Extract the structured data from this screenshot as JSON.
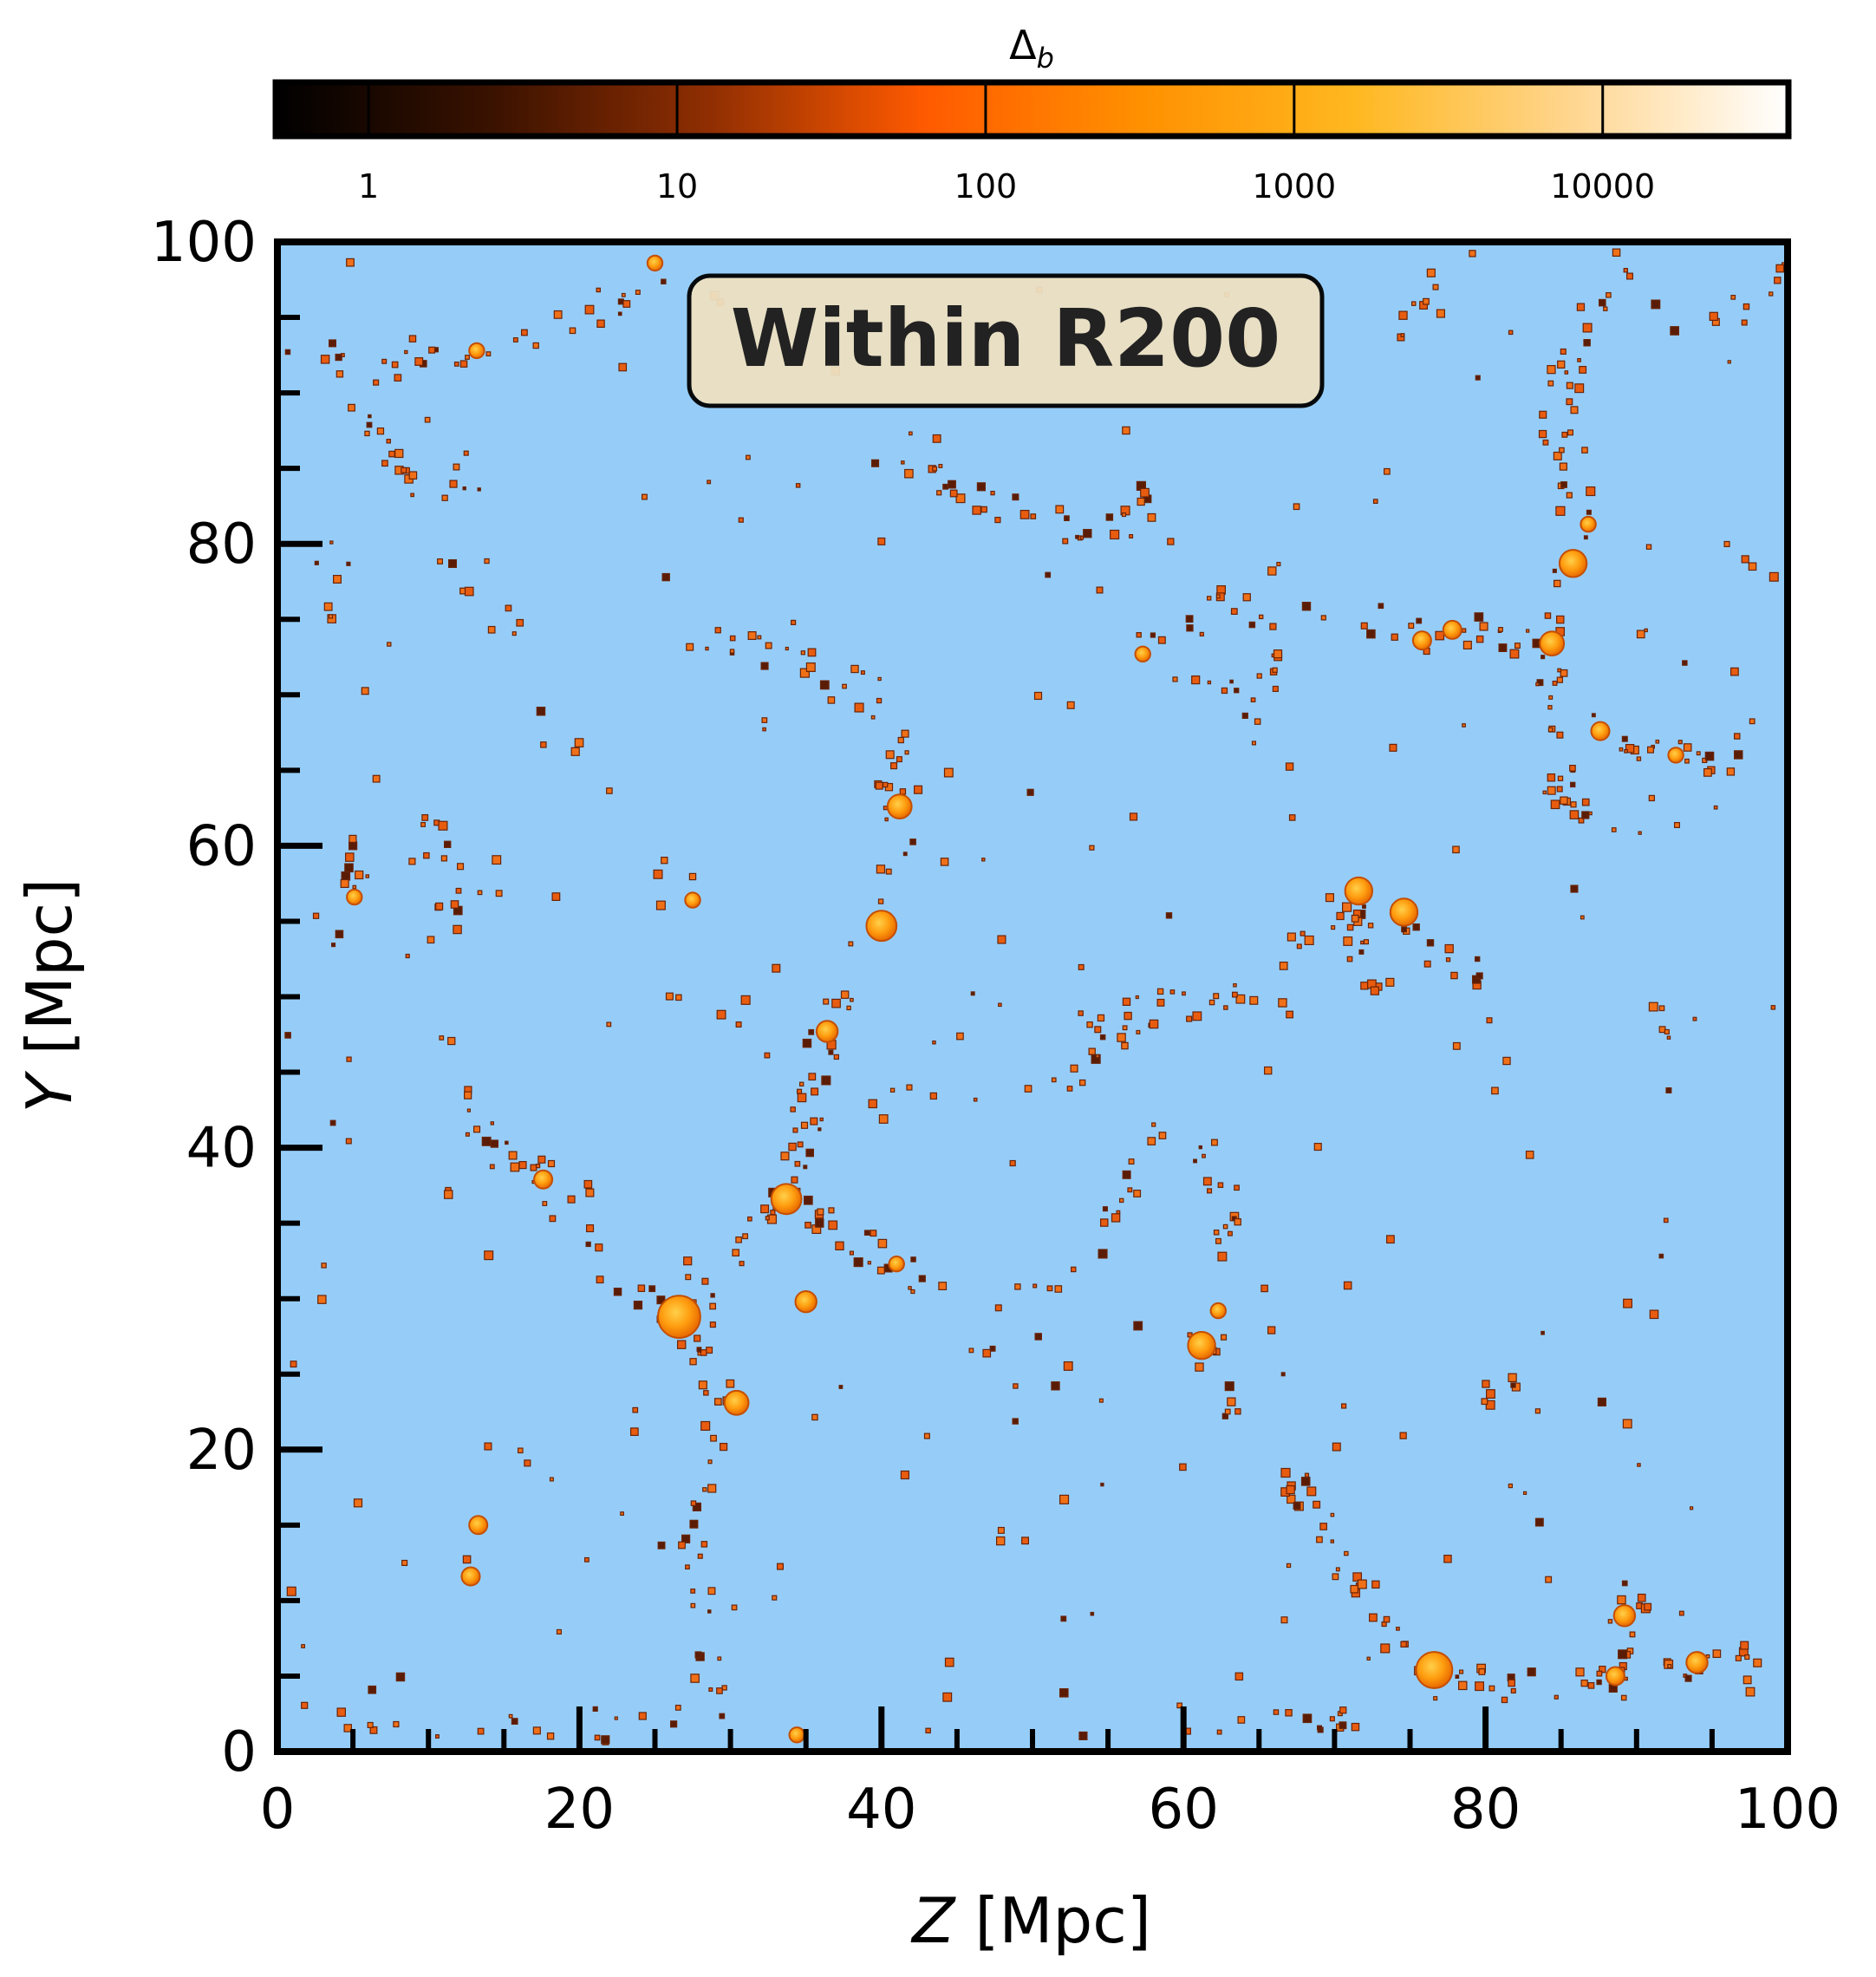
{
  "chart_data": {
    "type": "scatter",
    "title": "",
    "annotation": "Within R200",
    "xlabel": {
      "symbol": "Z",
      "unit": "[Mpc]"
    },
    "ylabel": {
      "symbol": "Y",
      "unit": "[Mpc]"
    },
    "xlim": [
      0,
      100
    ],
    "ylim": [
      0,
      100
    ],
    "xticks": [
      "0",
      "20",
      "40",
      "60",
      "80",
      "100"
    ],
    "yticks": [
      "0",
      "20",
      "40",
      "60",
      "80",
      "100"
    ],
    "grid": false,
    "background_color": "#96cdf8",
    "colorbar": {
      "label_symbol": "Δ",
      "label_subscript": "b",
      "scale": "log",
      "range": [
        0.5,
        40000
      ],
      "ticks": [
        1,
        10,
        100,
        1000,
        10000
      ],
      "tick_labels": [
        "1",
        "10",
        "100",
        "1000",
        "10000"
      ],
      "cmap_stops": [
        "#000000",
        "#3a1200",
        "#8f2e02",
        "#ff5a00",
        "#ff9000",
        "#ffb820",
        "#ffd690",
        "#ffffff"
      ]
    },
    "halos": [
      {
        "z": 26.6,
        "y": 28.8,
        "r": 1.4
      },
      {
        "z": 76.6,
        "y": 5.4,
        "r": 1.2
      },
      {
        "z": 33.7,
        "y": 36.6,
        "r": 1.0
      },
      {
        "z": 40.0,
        "y": 54.7,
        "r": 1.0
      },
      {
        "z": 61.2,
        "y": 26.9,
        "r": 0.9
      },
      {
        "z": 71.6,
        "y": 57.0,
        "r": 0.9
      },
      {
        "z": 74.6,
        "y": 55.6,
        "r": 0.9
      },
      {
        "z": 85.8,
        "y": 78.7,
        "r": 0.9
      },
      {
        "z": 84.4,
        "y": 73.4,
        "r": 0.8
      },
      {
        "z": 30.4,
        "y": 23.1,
        "r": 0.8
      },
      {
        "z": 41.2,
        "y": 62.6,
        "r": 0.8
      },
      {
        "z": 36.4,
        "y": 47.7,
        "r": 0.7
      },
      {
        "z": 35.0,
        "y": 29.8,
        "r": 0.7
      },
      {
        "z": 89.2,
        "y": 9.0,
        "r": 0.7
      },
      {
        "z": 94.0,
        "y": 5.9,
        "r": 0.7
      },
      {
        "z": 75.8,
        "y": 73.6,
        "r": 0.6
      },
      {
        "z": 77.8,
        "y": 74.3,
        "r": 0.6
      },
      {
        "z": 87.6,
        "y": 67.6,
        "r": 0.6
      },
      {
        "z": 88.6,
        "y": 5.0,
        "r": 0.6
      },
      {
        "z": 13.3,
        "y": 15.0,
        "r": 0.6
      },
      {
        "z": 12.8,
        "y": 11.6,
        "r": 0.6
      },
      {
        "z": 17.6,
        "y": 37.9,
        "r": 0.6
      },
      {
        "z": 27.5,
        "y": 56.4,
        "r": 0.5
      },
      {
        "z": 57.3,
        "y": 72.7,
        "r": 0.5
      },
      {
        "z": 62.3,
        "y": 29.2,
        "r": 0.5
      },
      {
        "z": 41.0,
        "y": 32.3,
        "r": 0.5
      },
      {
        "z": 5.1,
        "y": 56.6,
        "r": 0.5
      },
      {
        "z": 13.2,
        "y": 92.8,
        "r": 0.5
      },
      {
        "z": 25.0,
        "y": 98.6,
        "r": 0.5
      },
      {
        "z": 86.8,
        "y": 81.3,
        "r": 0.5
      },
      {
        "z": 92.6,
        "y": 66.0,
        "r": 0.5
      },
      {
        "z": 34.4,
        "y": 1.1,
        "r": 0.5
      }
    ],
    "filaments": [
      {
        "path": [
          [
            26.6,
            28.8
          ],
          [
            30.0,
            33.0
          ],
          [
            33.7,
            36.6
          ],
          [
            35.0,
            42.0
          ],
          [
            36.4,
            47.7
          ],
          [
            38.5,
            52.0
          ],
          [
            40.0,
            54.7
          ],
          [
            41.0,
            58.0
          ],
          [
            41.2,
            62.6
          ],
          [
            40.5,
            67.0
          ],
          [
            38.0,
            71.0
          ],
          [
            33.0,
            73.0
          ],
          [
            28.0,
            72.5
          ]
        ],
        "n": 80
      },
      {
        "path": [
          [
            26.6,
            28.8
          ],
          [
            28.5,
            25.0
          ],
          [
            30.4,
            23.1
          ],
          [
            28.0,
            19.0
          ],
          [
            27.5,
            14.0
          ],
          [
            28.0,
            8.0
          ],
          [
            29.0,
            3.0
          ]
        ],
        "n": 40
      },
      {
        "path": [
          [
            26.6,
            28.8
          ],
          [
            23.0,
            31.0
          ],
          [
            19.0,
            35.0
          ],
          [
            17.6,
            37.9
          ],
          [
            15.0,
            40.0
          ],
          [
            12.0,
            43.0
          ]
        ],
        "n": 30
      },
      {
        "path": [
          [
            33.7,
            36.6
          ],
          [
            37.0,
            34.0
          ],
          [
            41.0,
            32.3
          ],
          [
            43.0,
            29.0
          ],
          [
            46.0,
            26.0
          ],
          [
            50.0,
            30.0
          ],
          [
            54.0,
            34.0
          ],
          [
            57.0,
            38.0
          ],
          [
            58.0,
            42.0
          ]
        ],
        "n": 45
      },
      {
        "path": [
          [
            61.2,
            26.9
          ],
          [
            63.0,
            22.0
          ],
          [
            66.0,
            19.0
          ],
          [
            69.0,
            15.0
          ],
          [
            72.0,
            10.0
          ],
          [
            74.5,
            7.0
          ],
          [
            76.6,
            5.4
          ],
          [
            80.0,
            4.5
          ],
          [
            84.0,
            4.0
          ],
          [
            88.6,
            5.0
          ],
          [
            89.2,
            9.0
          ],
          [
            91.0,
            11.5
          ]
        ],
        "n": 70
      },
      {
        "path": [
          [
            61.2,
            26.9
          ],
          [
            62.5,
            31.0
          ],
          [
            63.0,
            35.0
          ],
          [
            62.0,
            40.0
          ]
        ],
        "n": 20
      },
      {
        "path": [
          [
            71.6,
            57.0
          ],
          [
            68.0,
            53.0
          ],
          [
            65.0,
            50.0
          ],
          [
            61.0,
            49.5
          ],
          [
            57.0,
            49.0
          ],
          [
            52.0,
            48.0
          ]
        ],
        "n": 35
      },
      {
        "path": [
          [
            74.6,
            55.6
          ],
          [
            77.0,
            53.0
          ],
          [
            80.0,
            51.5
          ]
        ],
        "n": 12
      },
      {
        "path": [
          [
            71.6,
            57.0
          ],
          [
            72.0,
            52.0
          ],
          [
            74.0,
            48.0
          ]
        ],
        "n": 15
      },
      {
        "path": [
          [
            84.4,
            73.4
          ],
          [
            85.8,
            78.7
          ],
          [
            86.0,
            84.0
          ],
          [
            84.5,
            89.0
          ],
          [
            86.0,
            94.0
          ],
          [
            89.0,
            98.0
          ]
        ],
        "n": 40
      },
      {
        "path": [
          [
            84.4,
            73.4
          ],
          [
            84.0,
            69.0
          ],
          [
            85.0,
            64.0
          ],
          [
            87.0,
            61.0
          ]
        ],
        "n": 25
      },
      {
        "path": [
          [
            84.4,
            73.4
          ],
          [
            80.0,
            74.0
          ],
          [
            77.8,
            74.3
          ],
          [
            75.8,
            73.6
          ],
          [
            72.0,
            75.0
          ]
        ],
        "n": 20
      },
      {
        "path": [
          [
            87.6,
            67.6
          ],
          [
            90.0,
            66.5
          ],
          [
            92.6,
            66.0
          ],
          [
            96.0,
            65.5
          ],
          [
            99.0,
            68.0
          ]
        ],
        "n": 20
      },
      {
        "path": [
          [
            57.3,
            72.7
          ],
          [
            60.0,
            74.0
          ],
          [
            63.0,
            76.5
          ],
          [
            66.0,
            74.0
          ],
          [
            65.0,
            69.0
          ],
          [
            61.0,
            70.5
          ]
        ],
        "n": 30
      },
      {
        "path": [
          [
            40.0,
            86.0
          ],
          [
            45.0,
            84.0
          ],
          [
            49.0,
            82.0
          ],
          [
            52.0,
            81.0
          ],
          [
            55.0,
            80.0
          ],
          [
            58.0,
            84.0
          ]
        ],
        "n": 35
      },
      {
        "path": [
          [
            5.0,
            88.5
          ],
          [
            8.0,
            86.0
          ],
          [
            10.0,
            84.0
          ],
          [
            12.5,
            84.0
          ],
          [
            13.5,
            85.5
          ]
        ],
        "n": 20
      },
      {
        "path": [
          [
            2.0,
            93.0
          ],
          [
            5.0,
            92.0
          ],
          [
            7.0,
            91.0
          ],
          [
            10.0,
            93.0
          ],
          [
            13.2,
            92.8
          ],
          [
            17.0,
            94.0
          ],
          [
            22.0,
            95.0
          ],
          [
            25.0,
            98.6
          ]
        ],
        "n": 30
      },
      {
        "path": [
          [
            9.0,
            62.0
          ],
          [
            11.0,
            60.0
          ],
          [
            10.0,
            58.0
          ],
          [
            13.0,
            55.0
          ]
        ],
        "n": 12
      },
      {
        "path": [
          [
            4.0,
            60.0
          ],
          [
            5.1,
            56.6
          ],
          [
            4.0,
            53.0
          ]
        ],
        "n": 10
      },
      {
        "path": [
          [
            46.0,
            42.0
          ],
          [
            50.0,
            44.0
          ],
          [
            54.0,
            46.0
          ],
          [
            58.0,
            48.0
          ]
        ],
        "n": 12
      },
      {
        "path": [
          [
            80.0,
            24.0
          ],
          [
            83.0,
            23.5
          ]
        ],
        "n": 8
      },
      {
        "path": [
          [
            91.0,
            48.5
          ],
          [
            94.0,
            48.0
          ]
        ],
        "n": 6
      },
      {
        "path": [
          [
            86.0,
            4.0
          ],
          [
            90.0,
            4.5
          ],
          [
            94.0,
            5.9
          ],
          [
            97.0,
            6.5
          ],
          [
            99.5,
            4.0
          ]
        ],
        "n": 20
      },
      {
        "path": [
          [
            2.0,
            3.0
          ],
          [
            6.0,
            2.0
          ],
          [
            12.0,
            1.0
          ],
          [
            20.0,
            1.5
          ],
          [
            26.0,
            2.5
          ]
        ],
        "n": 20
      },
      {
        "path": [
          [
            65.0,
            3.0
          ],
          [
            70.0,
            2.0
          ],
          [
            74.0,
            1.5
          ]
        ],
        "n": 10
      },
      {
        "path": [
          [
            3.0,
            80.0
          ],
          [
            4.0,
            77.0
          ],
          [
            3.5,
            74.0
          ]
        ],
        "n": 6
      },
      {
        "path": [
          [
            11.0,
            80.0
          ],
          [
            12.0,
            77.0
          ],
          [
            13.0,
            75.0
          ],
          [
            16.0,
            75.0
          ]
        ],
        "n": 8
      },
      {
        "path": [
          [
            93.0,
            95.0
          ],
          [
            96.0,
            94.5
          ],
          [
            99.5,
            99.0
          ]
        ],
        "n": 10
      },
      {
        "path": [
          [
            78.0,
            99.0
          ],
          [
            76.0,
            96.0
          ],
          [
            75.0,
            93.0
          ]
        ],
        "n": 8
      }
    ],
    "field_count": 260
  }
}
